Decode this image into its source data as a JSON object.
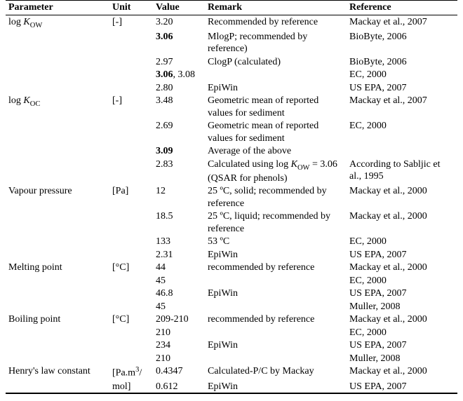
{
  "headers": {
    "parameter": "Parameter",
    "unit": "Unit",
    "value": "Value",
    "remark": "Remark",
    "reference": "Reference"
  },
  "rows": [
    {
      "param_html": "log <i>K</i><sub>OW</sub>",
      "unit": "[-]",
      "value": "3.20",
      "remark": "Recommended by reference",
      "reference": "Mackay et al., 2007"
    },
    {
      "param_html": "",
      "unit": "",
      "value_html": "<span class=\"b\">3.06</span>",
      "remark": "MlogP; recommended by reference)",
      "reference": "BioByte, 2006"
    },
    {
      "param_html": "",
      "unit": "",
      "value": "2.97",
      "remark": "ClogP (calculated)",
      "reference": "BioByte, 2006"
    },
    {
      "param_html": "",
      "unit": "",
      "value_html": "<span class=\"b\">3.06</span>, 3.08",
      "remark": "",
      "reference": "EC, 2000"
    },
    {
      "param_html": "",
      "unit": "",
      "value": "2.80",
      "remark": "EpiWin",
      "reference": "US EPA, 2007"
    },
    {
      "param_html": "log <i>K</i><sub>OC</sub>",
      "unit": "[-]",
      "value": "3.48",
      "remark": "Geometric mean of reported values for sediment",
      "reference": "Mackay et al., 2007"
    },
    {
      "param_html": "",
      "unit": "",
      "value": "2.69",
      "remark": "Geometric mean of reported values for sediment",
      "reference": "EC, 2000"
    },
    {
      "param_html": "",
      "unit": "",
      "value_html": "<span class=\"b\">3.09</span>",
      "remark": "Average of the above",
      "reference": ""
    },
    {
      "param_html": "",
      "unit": "",
      "value": "2.83",
      "remark_html": "Calculated using log <i>K</i><sub>OW</sub> = 3.06 (QSAR for phenols)",
      "reference": "According to Sabljic et al., 1995"
    },
    {
      "param_html": "Vapour pressure",
      "unit": "[Pa]",
      "value": "12",
      "remark": "25 ºC, solid; recommended by reference",
      "reference": "Mackay et al., 2000"
    },
    {
      "param_html": "",
      "unit": "",
      "value": "18.5",
      "remark": "25 ºC, liquid; recommended by reference",
      "reference": "Mackay et al., 2000"
    },
    {
      "param_html": "",
      "unit": "",
      "value": "133",
      "remark": "53 ºC",
      "reference": "EC, 2000"
    },
    {
      "param_html": "",
      "unit": "",
      "value": "2.31",
      "remark": "EpiWin",
      "reference": "US EPA, 2007"
    },
    {
      "param_html": "Melting point",
      "unit": "[°C]",
      "value": "44",
      "remark": "recommended by reference",
      "reference": "Mackay et al., 2000"
    },
    {
      "param_html": "",
      "unit": "",
      "value": "45",
      "remark": "",
      "reference": "EC, 2000"
    },
    {
      "param_html": "",
      "unit": "",
      "value": "46.8",
      "remark": "EpiWin",
      "reference": "US EPA, 2007"
    },
    {
      "param_html": "",
      "unit": "",
      "value": "45",
      "remark": "",
      "reference": "Muller, 2008"
    },
    {
      "param_html": "Boiling point",
      "unit": "[°C]",
      "value": "209-210",
      "remark": "recommended by reference",
      "reference": "Mackay et al., 2000"
    },
    {
      "param_html": "",
      "unit": "",
      "value": "210",
      "remark": "",
      "reference": "EC, 2000"
    },
    {
      "param_html": "",
      "unit": "",
      "value": "234",
      "remark": "EpiWin",
      "reference": "US EPA, 2007"
    },
    {
      "param_html": "",
      "unit": "",
      "value": "210",
      "remark": "",
      "reference": "Muller, 2008"
    },
    {
      "param_html": "Henry's law constant",
      "unit_html": "[Pa.m<sup>3</sup>/",
      "value": "0.4347",
      "remark": "Calculated-P/C by Mackay",
      "reference": "Mackay et al., 2000"
    },
    {
      "param_html": "",
      "unit": "mol]",
      "value": "0.612",
      "remark": "EpiWin",
      "reference": "US EPA, 2007",
      "last": true
    }
  ]
}
